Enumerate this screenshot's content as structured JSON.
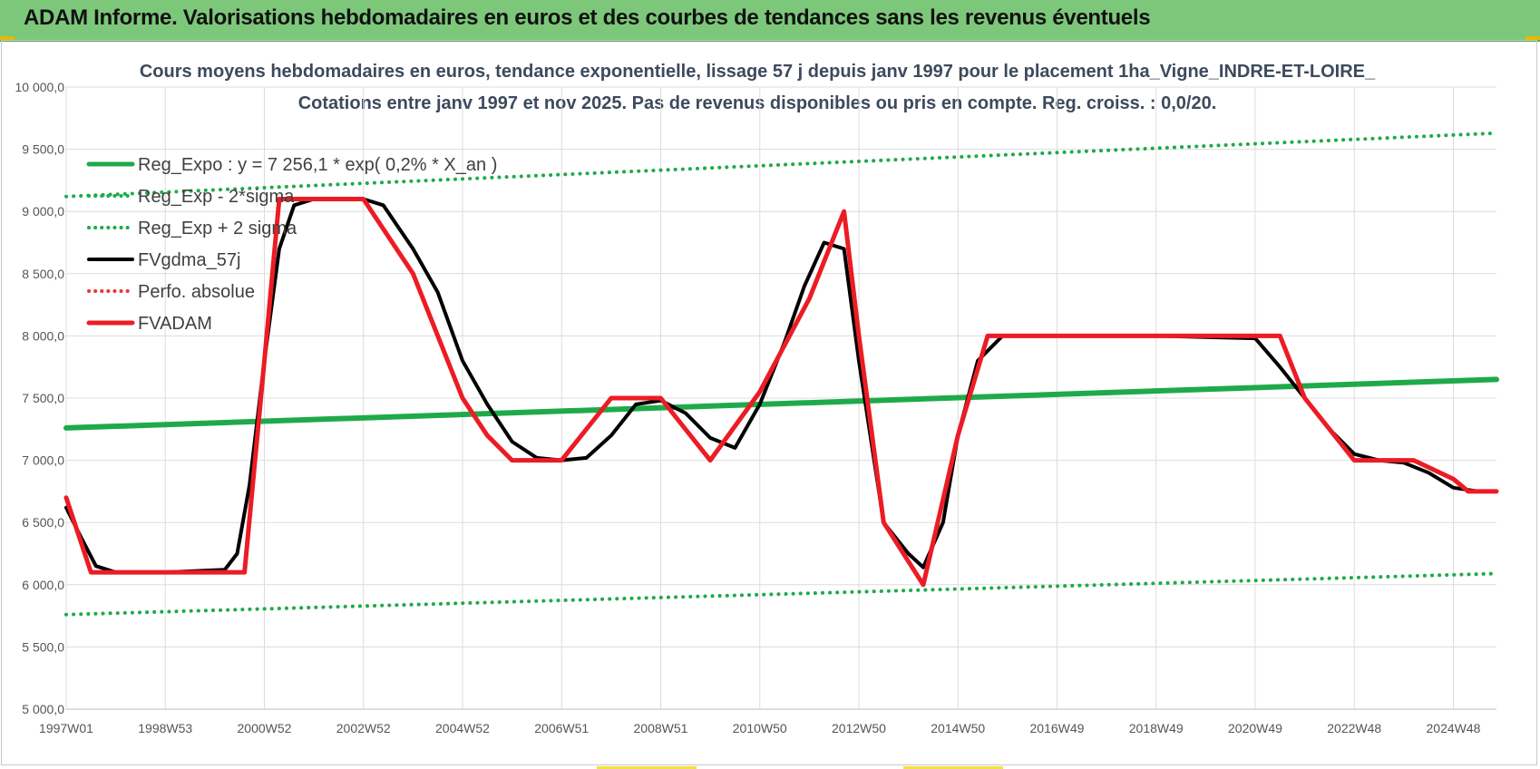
{
  "header": {
    "title": "ADAM Informe. Valorisations hebdomadaires en euros et des courbes de tendances sans les revenus éventuels"
  },
  "chart": {
    "title_line1": "Cours moyens hebdomadaires en euros, tendance exponentielle, lissage 57 j depuis janv 1997 pour le placement 1ha_Vigne_INDRE-ET-LOIRE_",
    "title_line2": "Cotations entre janv 1997 et nov 2025. Pas de revenus disponibles ou pris en compte. Reg. croiss. : 0,0/20."
  },
  "chart_data": {
    "type": "line",
    "x_range": [
      1997.0,
      2025.87
    ],
    "ylim": [
      5000,
      10000
    ],
    "y_ticks": [
      5000,
      5500,
      6000,
      6500,
      7000,
      7500,
      8000,
      8500,
      9000,
      9500,
      10000
    ],
    "y_tick_labels": [
      "5 000,0",
      "5 500,0",
      "6 000,0",
      "6 500,0",
      "7 000,0",
      "7 500,0",
      "8 000,0",
      "8 500,0",
      "9 000,0",
      "9 500,0",
      "10 000,0"
    ],
    "x_tick_labels": [
      "1997W01",
      "1998W53",
      "2000W52",
      "2002W52",
      "2004W52",
      "2006W51",
      "2008W51",
      "2010W50",
      "2012W50",
      "2014W50",
      "2016W49",
      "2018W49",
      "2020W49",
      "2022W48",
      "2024W48"
    ],
    "x_tick_values": [
      1997.0,
      1999.0,
      2001.0,
      2003.0,
      2005.0,
      2007.0,
      2009.0,
      2011.0,
      2013.0,
      2015.0,
      2017.0,
      2019.0,
      2021.0,
      2023.0,
      2025.0
    ],
    "grid": true,
    "legend_position": "top-left",
    "series": [
      {
        "name": "Reg_Expo : y = 7 256,1 * exp( 0,2% *  X_an )",
        "color": "#1faa4a",
        "style": "solid",
        "x": [
          1997.0,
          2025.87
        ],
        "y": [
          7260,
          7650
        ]
      },
      {
        "name": "Reg_Exp - 2*sigma",
        "color": "#1faa4a",
        "style": "dotted",
        "x": [
          1997.0,
          2025.87
        ],
        "y": [
          5760,
          6090
        ]
      },
      {
        "name": "Reg_Exp + 2 sigma",
        "color": "#1faa4a",
        "style": "dotted",
        "x": [
          1997.0,
          2025.87
        ],
        "y": [
          9120,
          9630
        ]
      },
      {
        "name": "FVgdma_57j",
        "color": "#000000",
        "style": "solid",
        "x": [
          1997.0,
          1997.3,
          1997.6,
          1998.0,
          1999.0,
          2000.2,
          2000.45,
          2000.7,
          2001.0,
          2001.3,
          2001.6,
          2002.0,
          2003.0,
          2003.4,
          2004.0,
          2004.5,
          2005.0,
          2005.5,
          2006.0,
          2006.5,
          2007.0,
          2007.5,
          2008.0,
          2008.5,
          2009.0,
          2009.5,
          2010.0,
          2010.5,
          2011.0,
          2011.5,
          2011.9,
          2012.3,
          2012.7,
          2013.0,
          2013.5,
          2014.0,
          2014.3,
          2014.7,
          2015.0,
          2015.4,
          2015.9,
          2017.0,
          2019.0,
          2021.0,
          2021.5,
          2022.0,
          2022.5,
          2023.0,
          2023.5,
          2024.0,
          2024.5,
          2025.0,
          2025.5,
          2025.87
        ],
        "y": [
          6620,
          6380,
          6150,
          6100,
          6100,
          6120,
          6250,
          6800,
          7800,
          8700,
          9050,
          9100,
          9100,
          9050,
          8700,
          8350,
          7800,
          7450,
          7150,
          7020,
          7000,
          7020,
          7200,
          7450,
          7480,
          7380,
          7180,
          7100,
          7450,
          7950,
          8400,
          8750,
          8700,
          7800,
          6500,
          6250,
          6140,
          6500,
          7200,
          7800,
          8000,
          8000,
          8000,
          7980,
          7750,
          7500,
          7250,
          7050,
          7000,
          6980,
          6900,
          6780,
          6750,
          6750
        ]
      },
      {
        "name": "Perfo. absolue",
        "color": "#e53935",
        "style": "dotted",
        "x": [],
        "y": []
      },
      {
        "name": "FVADAM",
        "color": "#ec1c24",
        "style": "solid",
        "x": [
          1997.0,
          1997.5,
          1998.0,
          2000.6,
          2001.0,
          2001.3,
          2003.0,
          2004.0,
          2005.0,
          2005.5,
          2006.0,
          2007.0,
          2008.0,
          2008.5,
          2009.0,
          2010.0,
          2011.0,
          2012.0,
          2012.7,
          2013.0,
          2013.5,
          2014.3,
          2015.0,
          2015.6,
          2019.0,
          2021.5,
          2022.0,
          2023.0,
          2023.4,
          2024.2,
          2025.0,
          2025.3,
          2025.87
        ],
        "y": [
          6700,
          6100,
          6100,
          6100,
          7800,
          9100,
          9100,
          8500,
          7500,
          7200,
          7000,
          7000,
          7500,
          7500,
          7500,
          7000,
          7550,
          8300,
          9000,
          8000,
          6500,
          6000,
          7200,
          8000,
          8000,
          8000,
          7500,
          7000,
          7000,
          7000,
          6850,
          6750,
          6750
        ]
      }
    ]
  }
}
